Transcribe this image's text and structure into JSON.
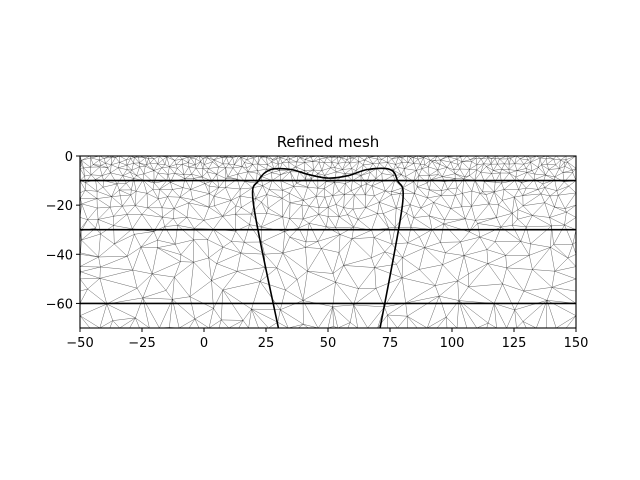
{
  "chart_data": {
    "type": "mesh",
    "title": "Refined mesh",
    "xlabel": "",
    "ylabel": "",
    "xlim": [
      -50,
      150
    ],
    "ylim": [
      -70,
      0
    ],
    "xticks": [
      -50,
      -25,
      0,
      25,
      50,
      75,
      100,
      125,
      150
    ],
    "yticks": [
      0,
      -20,
      -40,
      -60
    ],
    "grid": false,
    "layer_boundaries_y": [
      -10,
      -30,
      -60
    ],
    "anomaly_outline": [
      [
        30,
        -70
      ],
      [
        20,
        -20
      ],
      [
        22,
        -10
      ],
      [
        27,
        -5.5
      ],
      [
        35,
        -5.5
      ],
      [
        42,
        -7.5
      ],
      [
        50,
        -9
      ],
      [
        58,
        -8
      ],
      [
        66,
        -5.5
      ],
      [
        75,
        -5.5
      ],
      [
        78,
        -10
      ],
      [
        80,
        -20
      ],
      [
        71,
        -70
      ]
    ],
    "mesh_refinement_centers": [
      {
        "x": -28,
        "y": 0,
        "density": "high"
      },
      {
        "x": -5,
        "y": 0,
        "density": "high"
      },
      {
        "x": 28,
        "y": 0,
        "density": "high"
      },
      {
        "x": 55,
        "y": 0,
        "density": "high"
      },
      {
        "x": 85,
        "y": 0,
        "density": "high"
      },
      {
        "x": 115,
        "y": 0,
        "density": "high"
      },
      {
        "x": 50,
        "y": -20,
        "density": "medium"
      }
    ]
  }
}
